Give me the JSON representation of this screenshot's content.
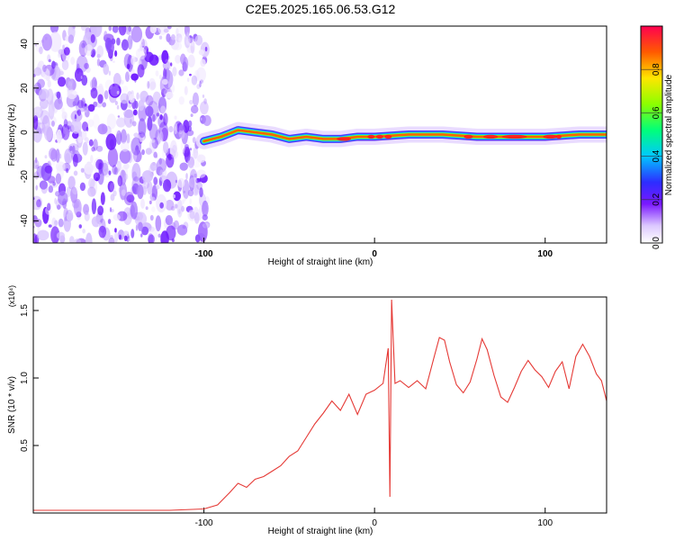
{
  "chart_data": [
    {
      "type": "heatmap",
      "title": "C2E5.2025.165.06.53.G12",
      "xlabel": "Height of straight line (km)",
      "ylabel": "Frequency (Hz)",
      "xlim": [
        -200,
        136
      ],
      "ylim": [
        -50,
        48
      ],
      "xticks": [
        -100,
        0,
        100
      ],
      "yticks": [
        -40,
        -20,
        0,
        20,
        40
      ],
      "colorbar": {
        "label": "Normalized spectral amplitude",
        "ticks": [
          0.0,
          0.2,
          0.4,
          0.6,
          0.8
        ],
        "range": [
          0.0,
          1.0
        ],
        "colors": [
          "#ffffff",
          "#dcc8ff",
          "#7a18ff",
          "#2d2dff",
          "#00c8ff",
          "#00ff7a",
          "#8cff00",
          "#ffe600",
          "#ff5a00",
          "#ff0050"
        ]
      },
      "noise_region": {
        "x_range": [
          -200,
          -98
        ],
        "description_value": "sparse purple blotches"
      },
      "ridge": {
        "points": [
          {
            "x": -100,
            "y": -4
          },
          {
            "x": -90,
            "y": -2
          },
          {
            "x": -80,
            "y": 1
          },
          {
            "x": -70,
            "y": 0
          },
          {
            "x": -60,
            "y": -1
          },
          {
            "x": -50,
            "y": -3
          },
          {
            "x": -40,
            "y": -2
          },
          {
            "x": -30,
            "y": -3
          },
          {
            "x": -20,
            "y": -3
          },
          {
            "x": -10,
            "y": -2
          },
          {
            "x": 0,
            "y": -2
          },
          {
            "x": 20,
            "y": -1
          },
          {
            "x": 40,
            "y": -1
          },
          {
            "x": 60,
            "y": -2
          },
          {
            "x": 80,
            "y": -2
          },
          {
            "x": 100,
            "y": -2
          },
          {
            "x": 120,
            "y": -1
          },
          {
            "x": 136,
            "y": -1
          }
        ]
      }
    },
    {
      "type": "line",
      "xlabel": "Height of straight line (km)",
      "ylabel": "SNR (10 * v/v)",
      "y_multiplier": "(x10⁴)",
      "xlim": [
        -200,
        136
      ],
      "ylim": [
        0.0,
        1.6
      ],
      "xticks": [
        -100,
        0,
        100
      ],
      "yticks": [
        0.5,
        1.0,
        1.5
      ],
      "series": [
        {
          "color": "#e53935",
          "points": [
            {
              "x": -200,
              "y": 0.02
            },
            {
              "x": -180,
              "y": 0.02
            },
            {
              "x": -160,
              "y": 0.02
            },
            {
              "x": -140,
              "y": 0.02
            },
            {
              "x": -120,
              "y": 0.02
            },
            {
              "x": -100,
              "y": 0.03
            },
            {
              "x": -92,
              "y": 0.06
            },
            {
              "x": -85,
              "y": 0.15
            },
            {
              "x": -80,
              "y": 0.22
            },
            {
              "x": -75,
              "y": 0.19
            },
            {
              "x": -70,
              "y": 0.25
            },
            {
              "x": -65,
              "y": 0.27
            },
            {
              "x": -60,
              "y": 0.31
            },
            {
              "x": -55,
              "y": 0.35
            },
            {
              "x": -50,
              "y": 0.42
            },
            {
              "x": -45,
              "y": 0.46
            },
            {
              "x": -40,
              "y": 0.56
            },
            {
              "x": -35,
              "y": 0.66
            },
            {
              "x": -30,
              "y": 0.74
            },
            {
              "x": -25,
              "y": 0.83
            },
            {
              "x": -20,
              "y": 0.76
            },
            {
              "x": -15,
              "y": 0.88
            },
            {
              "x": -10,
              "y": 0.73
            },
            {
              "x": -5,
              "y": 0.88
            },
            {
              "x": 0,
              "y": 0.91
            },
            {
              "x": 5,
              "y": 0.96
            },
            {
              "x": 8,
              "y": 1.22
            },
            {
              "x": 9,
              "y": 0.12
            },
            {
              "x": 10,
              "y": 1.58
            },
            {
              "x": 12,
              "y": 0.96
            },
            {
              "x": 15,
              "y": 0.98
            },
            {
              "x": 20,
              "y": 0.93
            },
            {
              "x": 25,
              "y": 0.98
            },
            {
              "x": 30,
              "y": 0.92
            },
            {
              "x": 35,
              "y": 1.16
            },
            {
              "x": 38,
              "y": 1.3
            },
            {
              "x": 41,
              "y": 1.28
            },
            {
              "x": 44,
              "y": 1.12
            },
            {
              "x": 48,
              "y": 0.95
            },
            {
              "x": 52,
              "y": 0.89
            },
            {
              "x": 56,
              "y": 0.97
            },
            {
              "x": 60,
              "y": 1.14
            },
            {
              "x": 63,
              "y": 1.29
            },
            {
              "x": 66,
              "y": 1.21
            },
            {
              "x": 70,
              "y": 1.02
            },
            {
              "x": 74,
              "y": 0.86
            },
            {
              "x": 78,
              "y": 0.82
            },
            {
              "x": 82,
              "y": 0.93
            },
            {
              "x": 86,
              "y": 1.05
            },
            {
              "x": 90,
              "y": 1.13
            },
            {
              "x": 94,
              "y": 1.06
            },
            {
              "x": 98,
              "y": 1.01
            },
            {
              "x": 102,
              "y": 0.93
            },
            {
              "x": 106,
              "y": 1.05
            },
            {
              "x": 110,
              "y": 1.12
            },
            {
              "x": 114,
              "y": 0.92
            },
            {
              "x": 118,
              "y": 1.16
            },
            {
              "x": 122,
              "y": 1.25
            },
            {
              "x": 126,
              "y": 1.16
            },
            {
              "x": 130,
              "y": 1.03
            },
            {
              "x": 133,
              "y": 0.98
            },
            {
              "x": 136,
              "y": 0.83
            }
          ]
        }
      ]
    }
  ]
}
